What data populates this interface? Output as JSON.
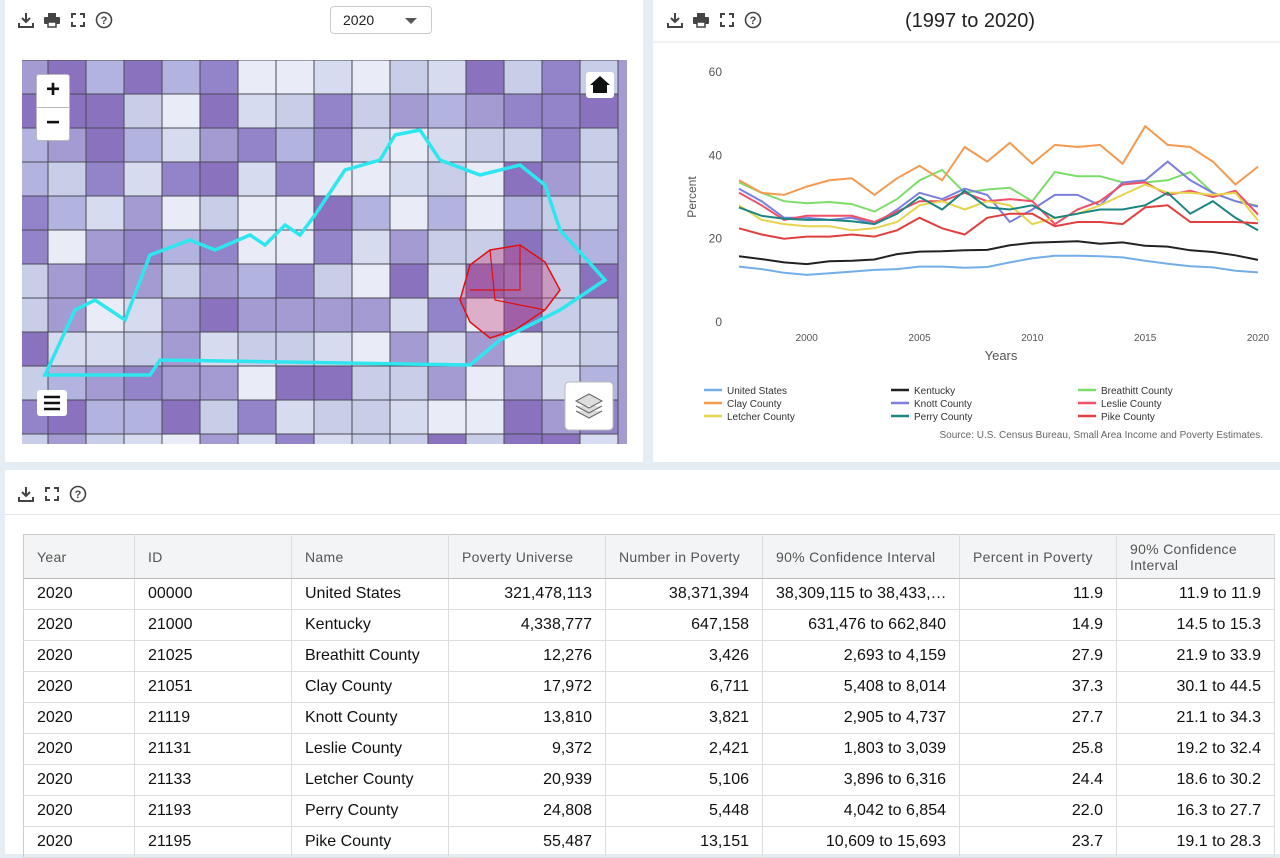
{
  "map_panel": {
    "year_select": "2020",
    "zoom_in": "+",
    "zoom_out": "−"
  },
  "chart_data": {
    "type": "line",
    "title": "(1997 to 2020)",
    "x_label": "Years",
    "y_label": "Percent",
    "source": "Source: U.S. Census Bureau, Small Area Income and Poverty Estimates.",
    "x": [
      1997,
      1998,
      1999,
      2000,
      2001,
      2002,
      2003,
      2004,
      2005,
      2006,
      2007,
      2008,
      2009,
      2010,
      2011,
      2012,
      2013,
      2014,
      2015,
      2016,
      2017,
      2018,
      2019,
      2020
    ],
    "xlim": [
      1997,
      2020
    ],
    "xticks": [
      2000,
      2005,
      2010,
      2015,
      2020
    ],
    "ylim": [
      0,
      60
    ],
    "yticks": [
      0,
      20,
      40,
      60
    ],
    "grid": false,
    "series": [
      {
        "name": "United States",
        "color": "#74aee8",
        "values": [
          13.3,
          12.7,
          11.8,
          11.3,
          11.7,
          12.1,
          12.5,
          12.7,
          13.3,
          13.3,
          13.0,
          13.2,
          14.3,
          15.3,
          15.9,
          15.9,
          15.8,
          15.5,
          14.7,
          14.0,
          13.4,
          13.1,
          12.3,
          11.9
        ]
      },
      {
        "name": "Kentucky",
        "color": "#222222",
        "values": [
          15.8,
          15.1,
          14.3,
          13.9,
          14.6,
          14.7,
          15.0,
          16.3,
          16.9,
          17.0,
          17.2,
          17.3,
          18.4,
          19.0,
          19.2,
          19.4,
          18.8,
          19.1,
          18.3,
          18.1,
          17.2,
          16.8,
          16.0,
          14.9
        ]
      },
      {
        "name": "Breathitt County",
        "color": "#7ddc6a",
        "values": [
          33.5,
          31,
          29,
          28.5,
          28.8,
          28.3,
          26.5,
          29.5,
          34,
          36.5,
          31,
          31.8,
          32.2,
          29,
          36,
          35,
          35,
          33.5,
          33.5,
          34,
          36,
          31,
          29,
          27.9
        ]
      },
      {
        "name": "Clay County",
        "color": "#f59a4f",
        "values": [
          34,
          31,
          30.5,
          32.5,
          34,
          34.5,
          30.5,
          34.5,
          37.5,
          34,
          42,
          38.5,
          43,
          38,
          42.5,
          42,
          42.5,
          38,
          47,
          42.5,
          42,
          38.5,
          33,
          37.3
        ]
      },
      {
        "name": "Knott County",
        "color": "#7b7fdd",
        "values": [
          32,
          29,
          25,
          25,
          24.5,
          25,
          23.5,
          27,
          31,
          29.5,
          32,
          30.5,
          24,
          27,
          30.5,
          30.5,
          28,
          33.5,
          34,
          38.5,
          34,
          31,
          29,
          27.7
        ]
      },
      {
        "name": "Leslie County",
        "color": "#ef4f67",
        "values": [
          31,
          28,
          24.5,
          25.5,
          25.5,
          25.5,
          24,
          26.5,
          29,
          29,
          31,
          29,
          29.5,
          29,
          23.5,
          27,
          29,
          33,
          33.5,
          30.5,
          31.5,
          30,
          31.5,
          25.8
        ]
      },
      {
        "name": "Letcher County",
        "color": "#e6d44a",
        "values": [
          28,
          24.5,
          23.5,
          23,
          23,
          22,
          22.5,
          24,
          28,
          29,
          27,
          29,
          28,
          23.5,
          25,
          26,
          28,
          30.5,
          33,
          31,
          31,
          30.5,
          31,
          24.4
        ]
      },
      {
        "name": "Perry County",
        "color": "#1b8582",
        "values": [
          27.5,
          25.5,
          24.8,
          24.5,
          24.5,
          24.2,
          23.5,
          26,
          30,
          27,
          31.5,
          27.5,
          27,
          28,
          25,
          26,
          27,
          27,
          28,
          31,
          26,
          29,
          25,
          22.0
        ]
      },
      {
        "name": "Pike County",
        "color": "#e0403f",
        "values": [
          22.5,
          21,
          20,
          20.5,
          20.5,
          21,
          20.5,
          22,
          25,
          22.5,
          21,
          25,
          26,
          26,
          23,
          24,
          24,
          23.5,
          27.5,
          28,
          24,
          24,
          24,
          23.7
        ]
      }
    ]
  },
  "table": {
    "columns": [
      "Year",
      "ID",
      "Name",
      "Poverty Universe",
      "Number in Poverty",
      "90% Confidence Interval",
      "Percent in Poverty",
      "90% Confidence Interval"
    ],
    "rows": [
      [
        "2020",
        "00000",
        "United States",
        "321,478,113",
        "38,371,394",
        "38,309,115 to 38,433,…",
        "11.9",
        "11.9 to 11.9"
      ],
      [
        "2020",
        "21000",
        "Kentucky",
        "4,338,777",
        "647,158",
        "631,476 to 662,840",
        "14.9",
        "14.5 to 15.3"
      ],
      [
        "2020",
        "21025",
        "Breathitt County",
        "12,276",
        "3,426",
        "2,693 to 4,159",
        "27.9",
        "21.9 to 33.9"
      ],
      [
        "2020",
        "21051",
        "Clay County",
        "17,972",
        "6,711",
        "5,408 to 8,014",
        "37.3",
        "30.1 to 44.5"
      ],
      [
        "2020",
        "21119",
        "Knott County",
        "13,810",
        "3,821",
        "2,905 to 4,737",
        "27.7",
        "21.1 to 34.3"
      ],
      [
        "2020",
        "21131",
        "Leslie County",
        "9,372",
        "2,421",
        "1,803 to 3,039",
        "25.8",
        "19.2 to 32.4"
      ],
      [
        "2020",
        "21133",
        "Letcher County",
        "20,939",
        "5,106",
        "3,896 to 6,316",
        "24.4",
        "18.6 to 30.2"
      ],
      [
        "2020",
        "21193",
        "Perry County",
        "24,808",
        "5,448",
        "4,042 to 6,854",
        "22.0",
        "16.3 to 27.7"
      ],
      [
        "2020",
        "21195",
        "Pike County",
        "55,487",
        "13,151",
        "10,609 to 15,693",
        "23.7",
        "19.1 to 28.3"
      ]
    ]
  }
}
